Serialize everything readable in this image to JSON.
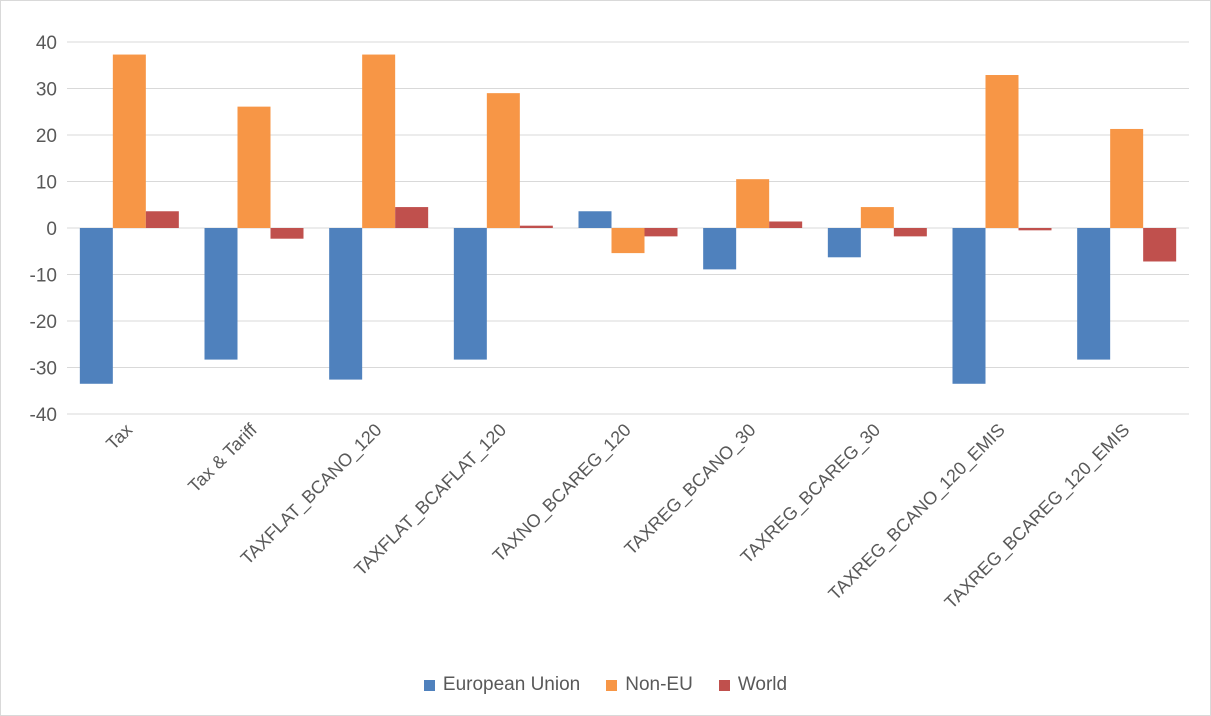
{
  "chart_data": {
    "type": "bar",
    "title": "",
    "xlabel": "",
    "ylabel": "",
    "ylim": [
      -40,
      40
    ],
    "yticks": [
      40,
      30,
      20,
      10,
      0,
      -10,
      -20,
      -30,
      -40
    ],
    "grid": true,
    "legend_position": "bottom",
    "categories": [
      "Tax",
      "Tax & Tariff",
      "TAXFLAT_BCANO_120",
      "TAXFLAT_BCAFLAT_120",
      "TAXNO_BCAREG_120",
      "TAXREG_BCANO_30",
      "TAXREG_BCAREG_30",
      "TAXREG_BCANO_120_EMIS",
      "TAXREG_BCAREG_120_EMIS"
    ],
    "series": [
      {
        "name": "European Union",
        "color": "#4f81bd",
        "values": [
          -33.5,
          -28.3,
          -32.6,
          -28.3,
          3.6,
          -8.9,
          -6.3,
          -33.5,
          -28.3
        ]
      },
      {
        "name": "Non-EU",
        "color": "#f79646",
        "values": [
          37.3,
          26.1,
          37.3,
          29.0,
          -5.4,
          10.5,
          4.5,
          32.9,
          21.3
        ]
      },
      {
        "name": "World",
        "color": "#c0504d",
        "values": [
          3.6,
          -2.3,
          4.5,
          0.5,
          -1.8,
          1.4,
          -1.8,
          -0.5,
          -7.2
        ]
      }
    ]
  }
}
